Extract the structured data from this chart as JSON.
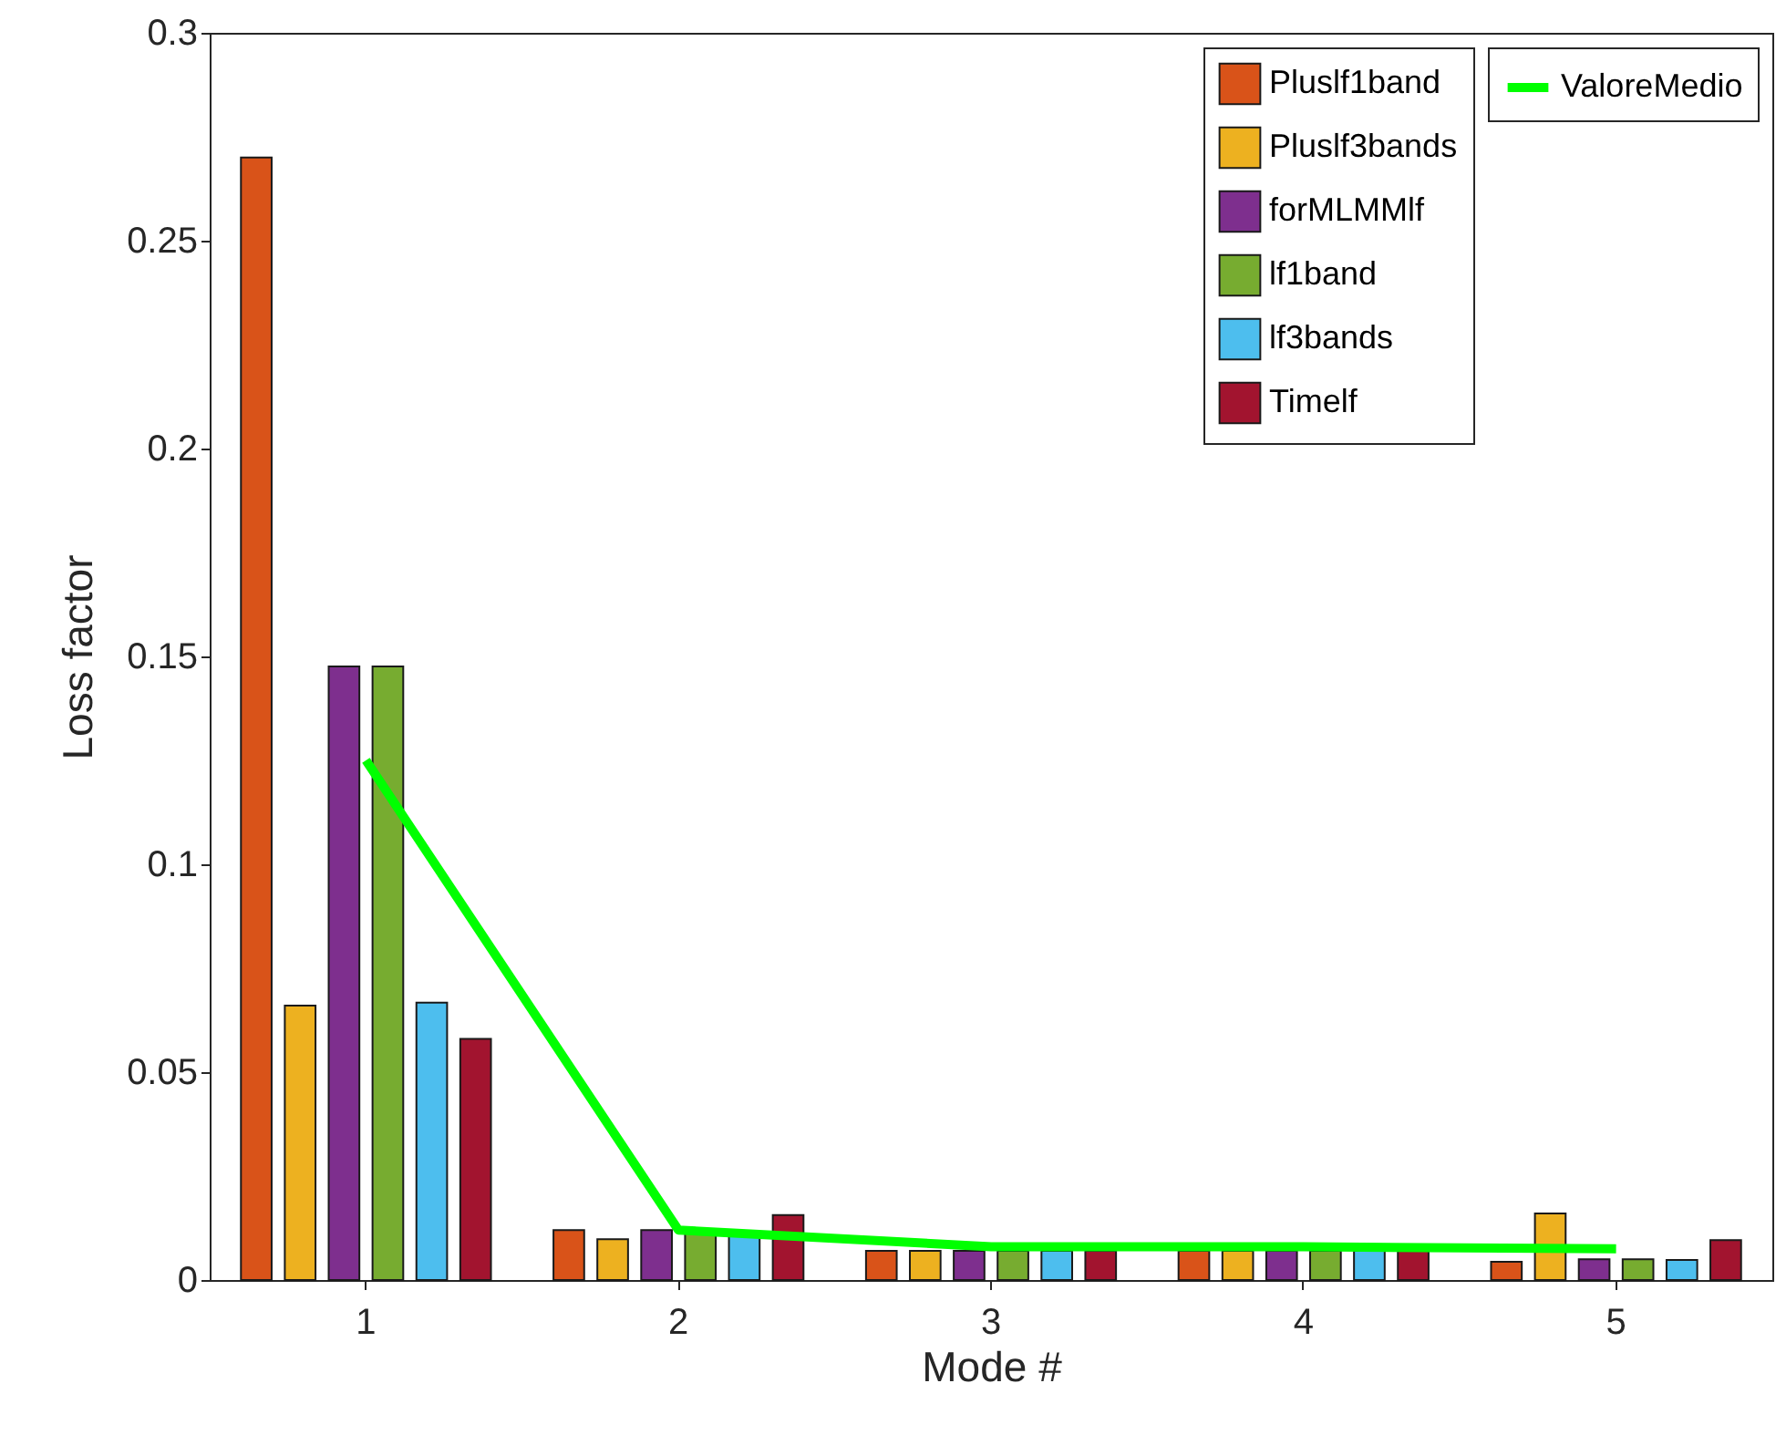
{
  "chart_data": {
    "type": "bar",
    "xlabel": "Mode #",
    "ylabel": "Loss factor",
    "categories": [
      "1",
      "2",
      "3",
      "4",
      "5"
    ],
    "ylim": [
      0,
      0.3
    ],
    "yticks": [
      0,
      0.05,
      0.1,
      0.15,
      0.2,
      0.25,
      0.3
    ],
    "grid": false,
    "legend": "top right",
    "series": [
      {
        "name": "Pluslf1band",
        "color": "#d95319",
        "values": [
          0.27,
          0.012,
          0.007,
          0.007,
          0.0044
        ]
      },
      {
        "name": "Pluslf3bands",
        "color": "#edb120",
        "values": [
          0.066,
          0.0098,
          0.007,
          0.007,
          0.016
        ]
      },
      {
        "name": "forMLMMlf",
        "color": "#7e2f8e",
        "values": [
          0.1476,
          0.012,
          0.007,
          0.007,
          0.005
        ]
      },
      {
        "name": "lf1band",
        "color": "#77ac30",
        "values": [
          0.1476,
          0.012,
          0.007,
          0.007,
          0.005
        ]
      },
      {
        "name": "lf3bands",
        "color": "#4dbeee",
        "values": [
          0.0667,
          0.011,
          0.007,
          0.007,
          0.0048
        ]
      },
      {
        "name": "Timelf",
        "color": "#a2142f",
        "values": [
          0.058,
          0.0156,
          0.007,
          0.007,
          0.0096
        ]
      },
      {
        "name": "ValoreMedio",
        "color": "#00ff00",
        "type": "line",
        "values": [
          0.125,
          0.012,
          0.008,
          0.008,
          0.0075
        ]
      }
    ]
  }
}
